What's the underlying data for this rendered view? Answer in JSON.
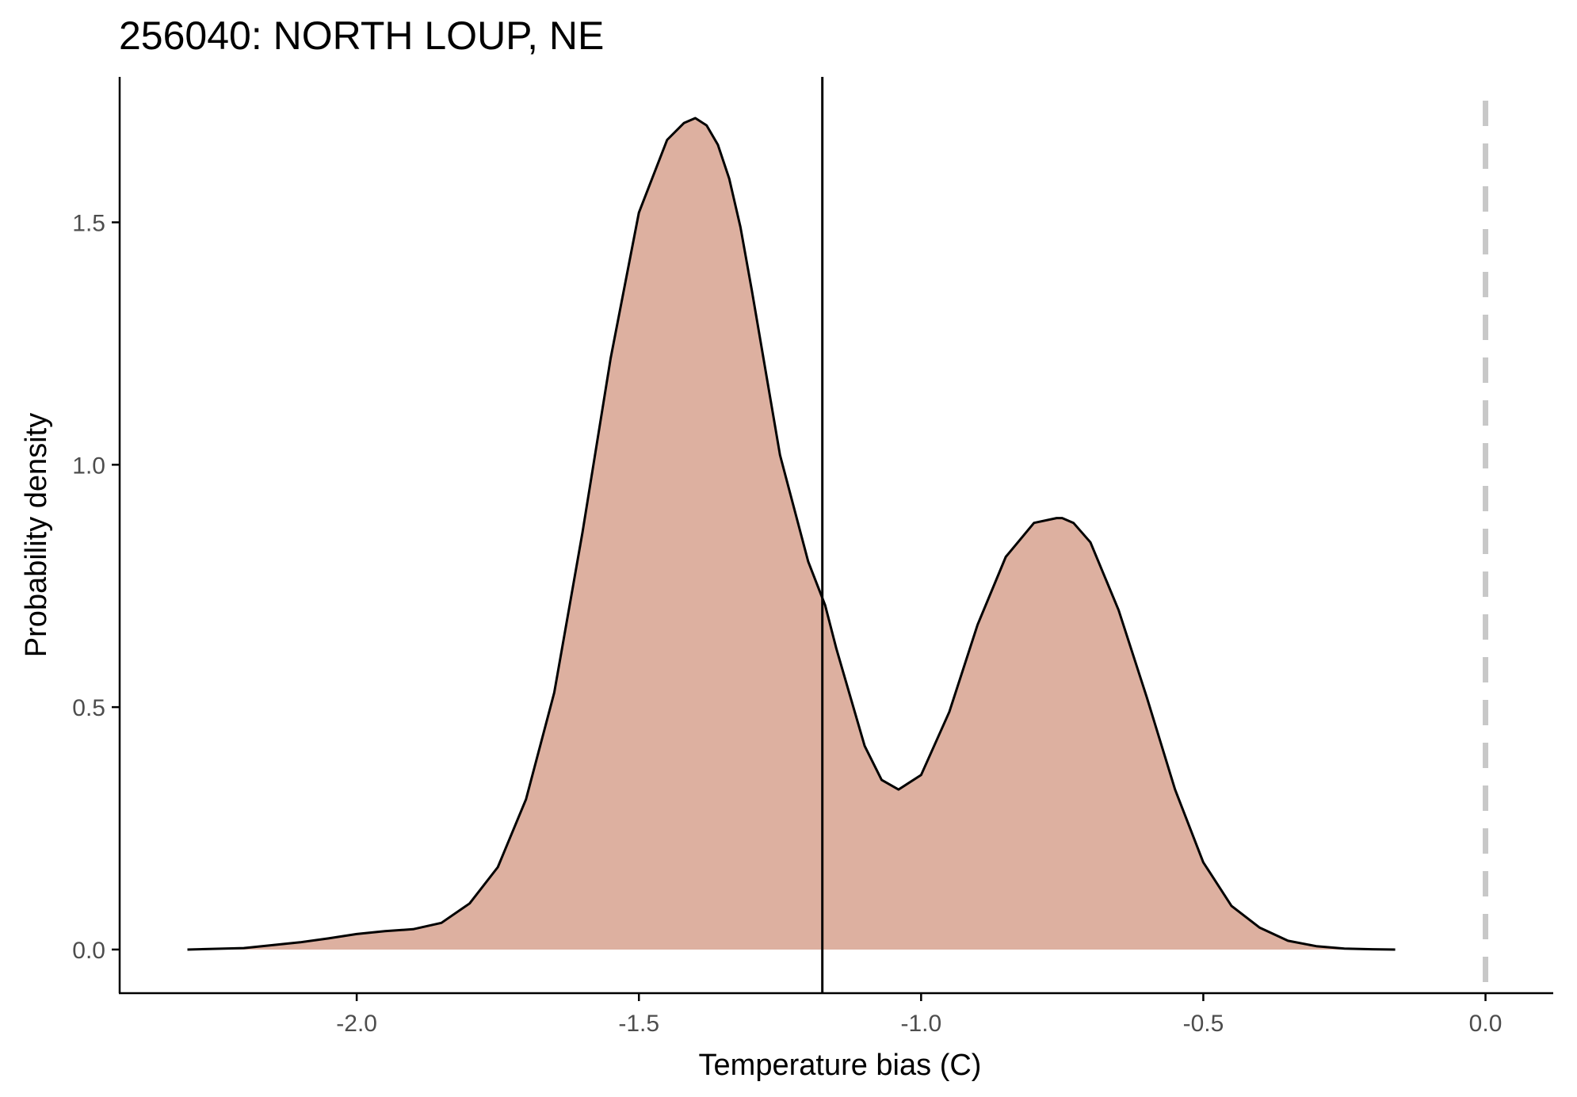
{
  "chart_data": {
    "type": "area",
    "title": "256040: NORTH LOUP, NE",
    "xlabel": "Temperature bias (C)",
    "ylabel": "Probability density",
    "xlim": [
      -2.42,
      0.12
    ],
    "ylim": [
      -0.09,
      1.8
    ],
    "x_ticks": [
      -2.0,
      -1.5,
      -1.0,
      -0.5,
      0.0
    ],
    "x_tick_labels": [
      "-2.0",
      "-1.5",
      "-1.0",
      "-0.5",
      "0.0"
    ],
    "y_ticks": [
      0.0,
      0.5,
      1.0,
      1.5
    ],
    "y_tick_labels": [
      "0.0",
      "0.5",
      "1.0",
      "1.5"
    ],
    "grid": false,
    "series": [
      {
        "fill": "#ddb0a0",
        "stroke": "#000000",
        "x": [
          -2.3,
          -2.2,
          -2.1,
          -2.05,
          -2.0,
          -1.95,
          -1.9,
          -1.85,
          -1.8,
          -1.75,
          -1.7,
          -1.65,
          -1.6,
          -1.55,
          -1.5,
          -1.45,
          -1.42,
          -1.4,
          -1.38,
          -1.36,
          -1.34,
          -1.32,
          -1.3,
          -1.25,
          -1.2,
          -1.17,
          -1.15,
          -1.1,
          -1.07,
          -1.04,
          -1.0,
          -0.95,
          -0.9,
          -0.85,
          -0.8,
          -0.76,
          -0.75,
          -0.73,
          -0.7,
          -0.65,
          -0.6,
          -0.55,
          -0.5,
          -0.45,
          -0.4,
          -0.35,
          -0.3,
          -0.25,
          -0.2,
          -0.16
        ],
        "y": [
          0.0,
          0.003,
          0.015,
          0.023,
          0.032,
          0.038,
          0.042,
          0.055,
          0.095,
          0.17,
          0.31,
          0.53,
          0.86,
          1.22,
          1.52,
          1.67,
          1.705,
          1.715,
          1.7,
          1.66,
          1.59,
          1.49,
          1.36,
          1.02,
          0.8,
          0.71,
          0.62,
          0.42,
          0.35,
          0.33,
          0.36,
          0.49,
          0.67,
          0.81,
          0.88,
          0.89,
          0.89,
          0.88,
          0.84,
          0.7,
          0.52,
          0.33,
          0.18,
          0.09,
          0.045,
          0.018,
          0.007,
          0.002,
          0.0005,
          0.0
        ]
      }
    ],
    "annotations": [
      {
        "type": "vline",
        "x": -1.175,
        "style": "solid",
        "color": "#000000"
      },
      {
        "type": "vline",
        "x": 0.0,
        "style": "dashed",
        "color": "#c8c8c8"
      }
    ]
  }
}
